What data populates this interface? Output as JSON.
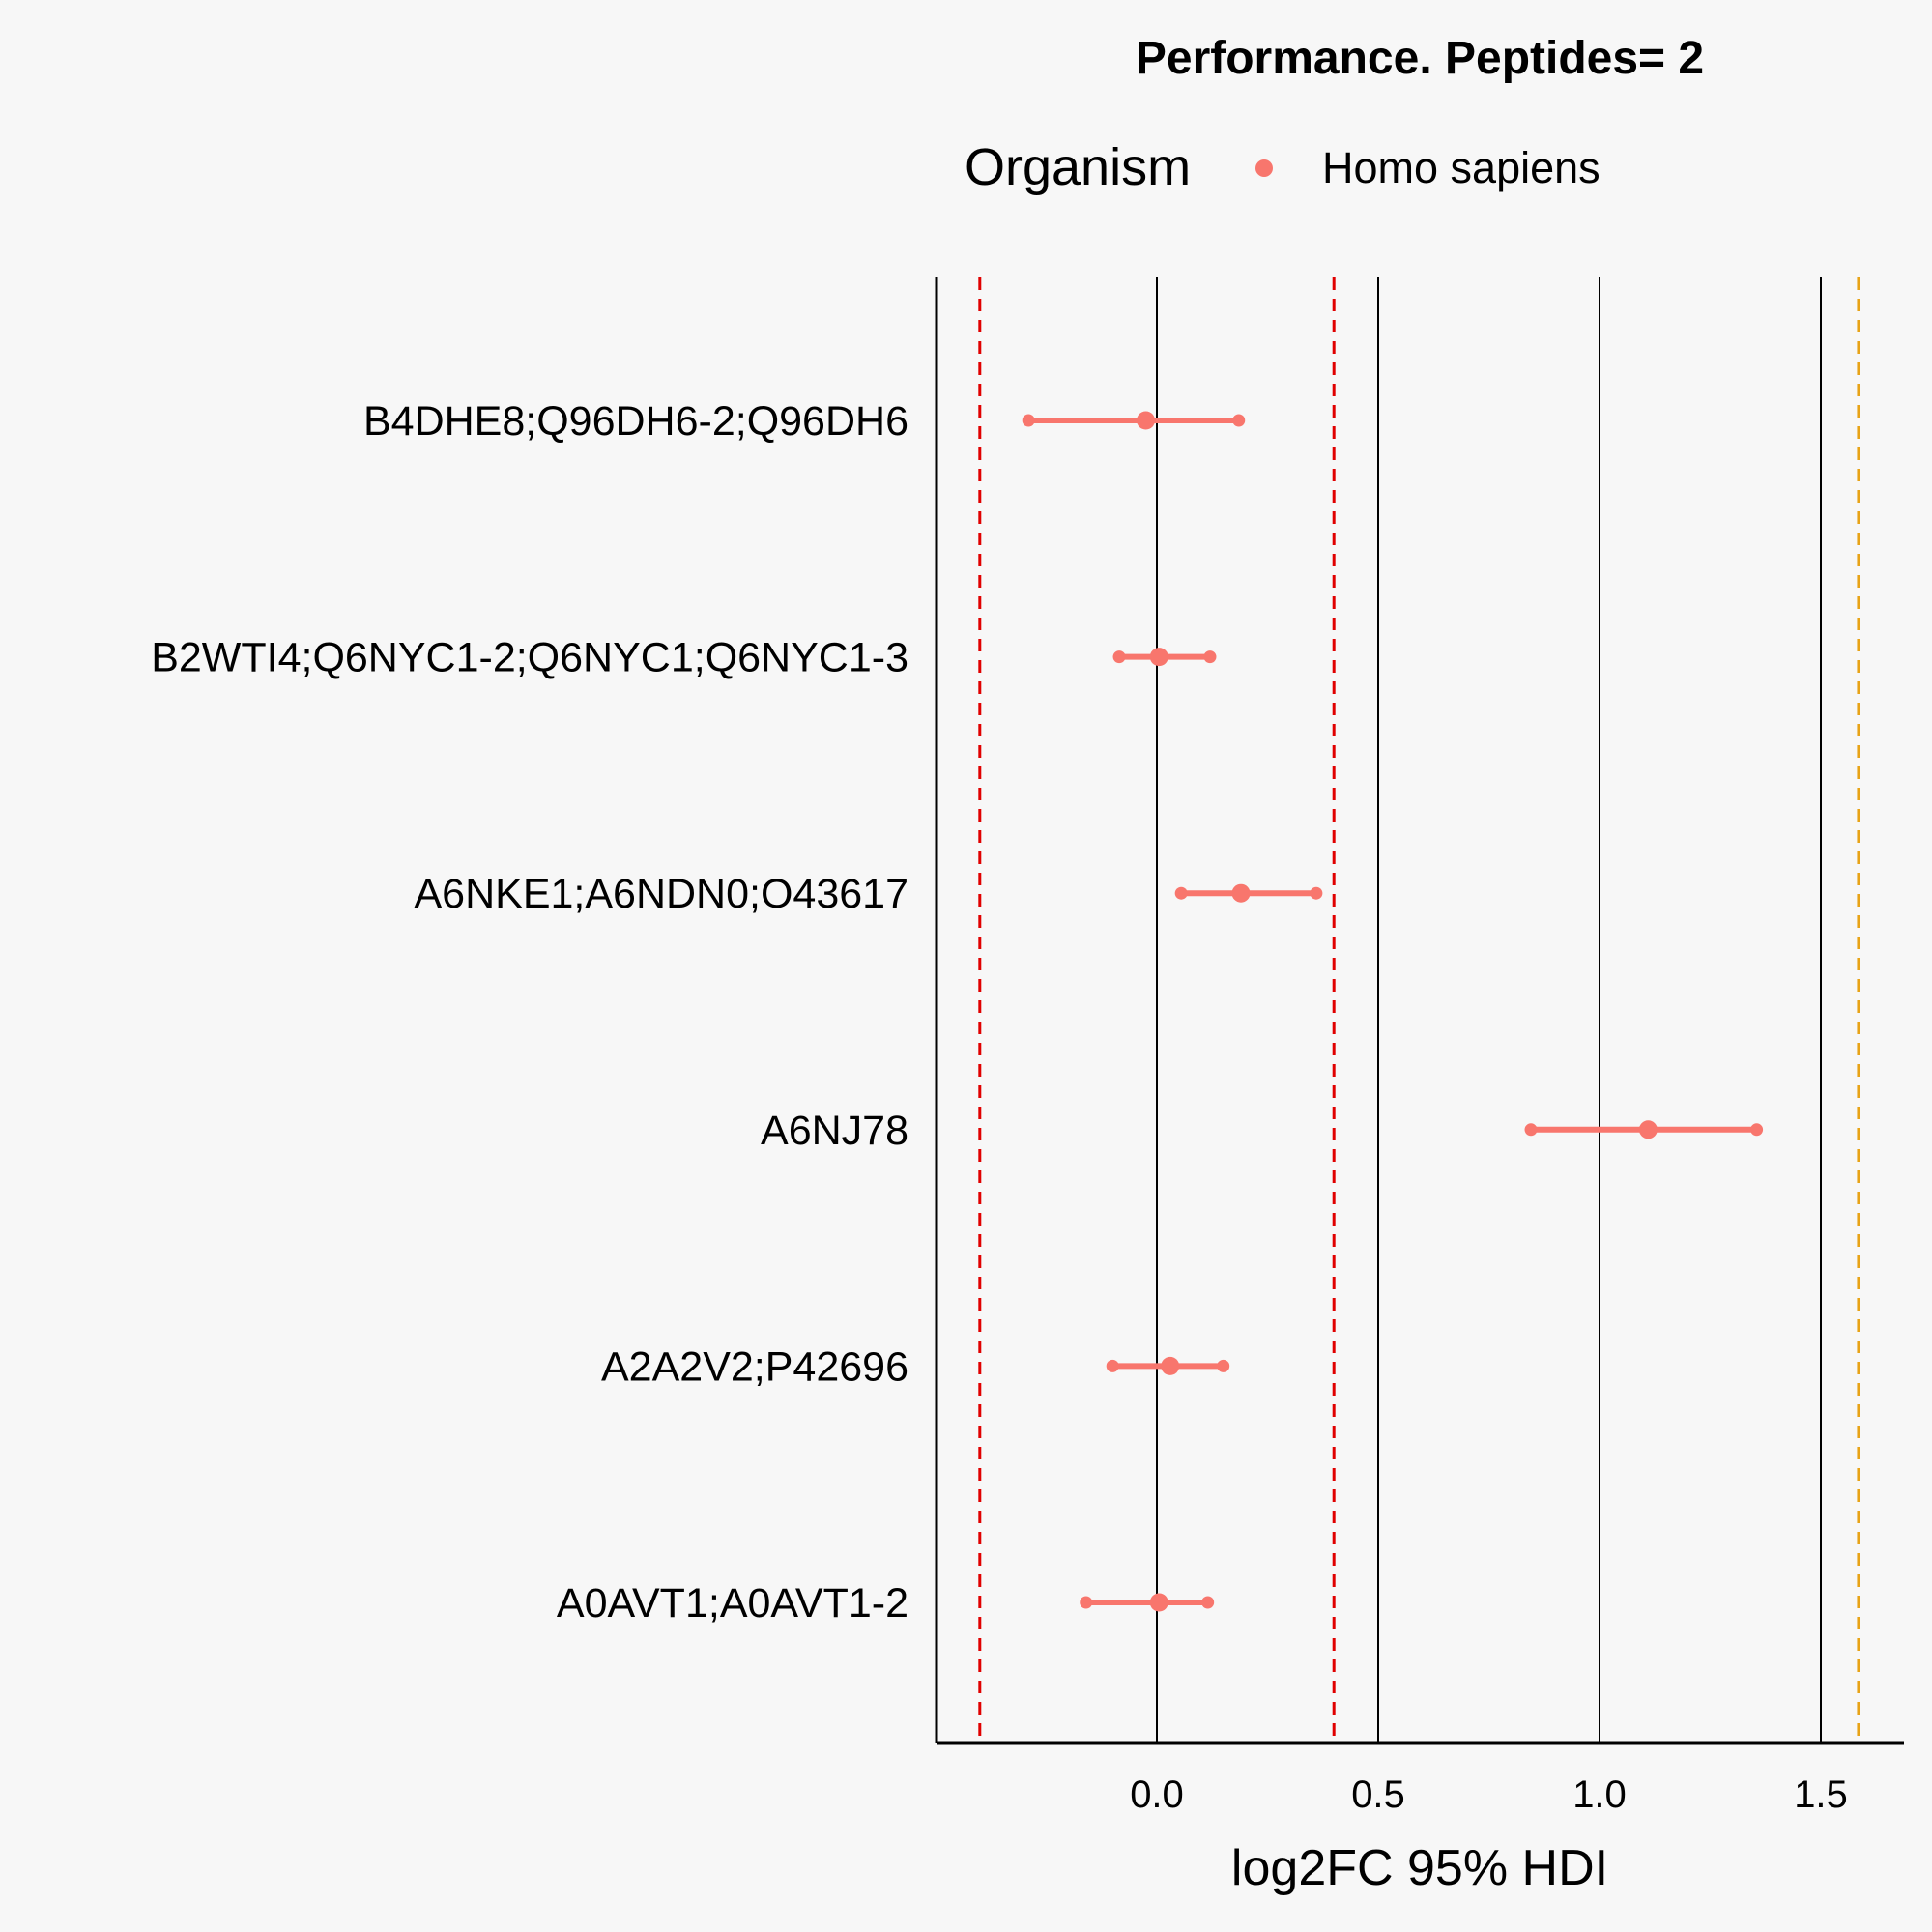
{
  "chart_data": {
    "type": "scatter",
    "title": "Performance. Peptides= 2",
    "xlabel": "log2FC 95% HDI",
    "ylabel": "",
    "xlim": [
      -0.5,
      1.7
    ],
    "x_ticks": [
      "0.0",
      "0.5",
      "1.0",
      "1.5"
    ],
    "x_tick_values": [
      0,
      0.5,
      1.0,
      1.5
    ],
    "categories": [
      "B4DHE8;Q96DH6-2;Q96DH6",
      "B2WTI4;Q6NYC1-2;Q6NYC1;Q6NYC1-3",
      "A6NKE1;A6NDN0;O43617",
      "A6NJ78",
      "A2A2V2;P42696",
      "A0AVT1;A0AVT1-2"
    ],
    "series": [
      {
        "name": "Homo sapiens",
        "color": "#f8766d",
        "estimate": [
          -0.025,
          0.005,
          0.19,
          1.11,
          0.03,
          0.005
        ],
        "lower": [
          -0.29,
          -0.085,
          0.055,
          0.845,
          -0.1,
          -0.16
        ],
        "upper": [
          0.185,
          0.12,
          0.36,
          1.355,
          0.15,
          0.115
        ]
      }
    ],
    "reference_lines": [
      {
        "x": -0.4,
        "color": "#e00000",
        "style": "dashed"
      },
      {
        "x": 0.4,
        "color": "#e00000",
        "style": "dashed"
      },
      {
        "x": 1.585,
        "color": "#e8a317",
        "style": "dashed"
      }
    ],
    "legend": {
      "title": "Organism",
      "position": "top",
      "entries": [
        "Homo sapiens"
      ]
    },
    "grid": "vertical major"
  }
}
